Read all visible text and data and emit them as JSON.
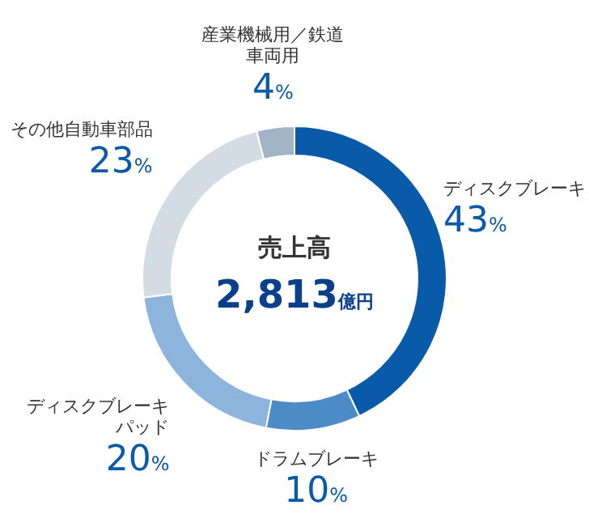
{
  "chart_data": {
    "type": "donut",
    "title": "売上高",
    "annotations": [
      "2,813億円"
    ],
    "categories": [
      "ディスクブレーキ",
      "ドラムブレーキ",
      "ディスクブレーキパッド",
      "その他自動車部品",
      "産業機械用／鉄道車両用"
    ],
    "value_labels": [
      "43%",
      "10%",
      "20%",
      "23%",
      "4%"
    ],
    "values": [
      43,
      10,
      20,
      23,
      4
    ],
    "colors": [
      "#0a5aaa",
      "#4d8ac8",
      "#8db4dc",
      "#d3dce4",
      "#a3b3c6"
    ]
  }
}
